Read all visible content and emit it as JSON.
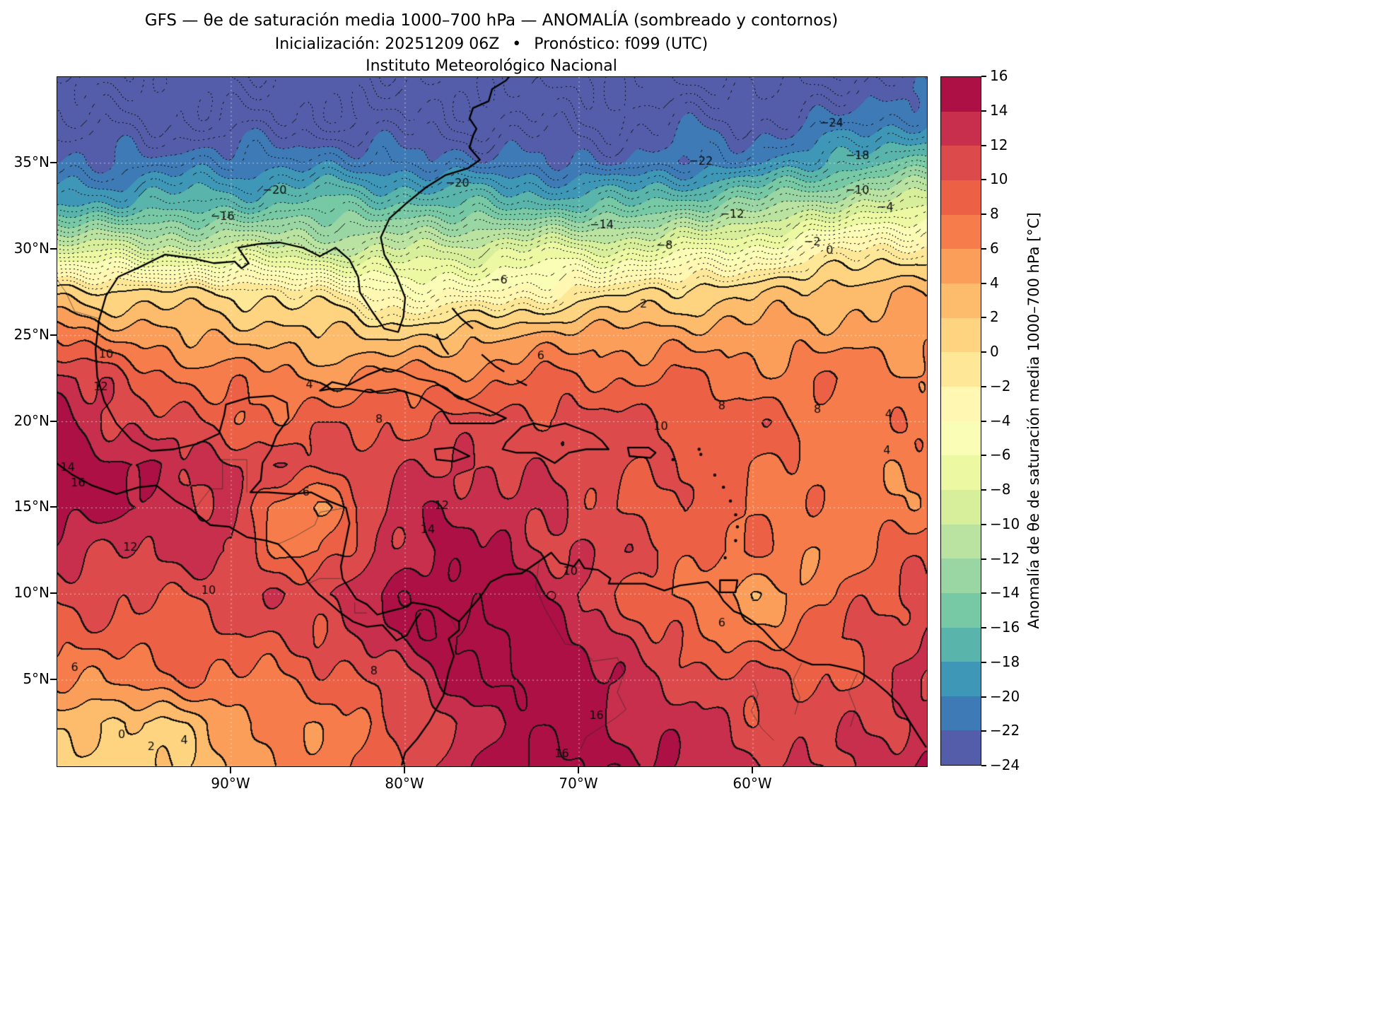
{
  "header": {
    "title": "GFS — θe de saturación media 1000–700 hPa — ANOMALÍA (sombreado y contornos)",
    "subtitle": "Inicialización: 20251209 06Z  •  Pronóstico: f099 (UTC)",
    "institution": "Instituto Meteorológico Nacional"
  },
  "axes": {
    "x_ticks": [
      {
        "label": "90°W",
        "lon": -90
      },
      {
        "label": "80°W",
        "lon": -80
      },
      {
        "label": "70°W",
        "lon": -70
      },
      {
        "label": "60°W",
        "lon": -60
      }
    ],
    "y_ticks": [
      {
        "label": "35°N",
        "lat": 35
      },
      {
        "label": "30°N",
        "lat": 30
      },
      {
        "label": "25°N",
        "lat": 25
      },
      {
        "label": "20°N",
        "lat": 20
      },
      {
        "label": "15°N",
        "lat": 15
      },
      {
        "label": "10°N",
        "lat": 10
      },
      {
        "label": "5°N",
        "lat": 5
      }
    ]
  },
  "colorbar": {
    "label": "Anomalía de θe de saturación media 1000–700 hPa [°C]",
    "ticks": [
      "16",
      "14",
      "12",
      "10",
      "8",
      "6",
      "4",
      "2",
      "0",
      "−2",
      "−4",
      "−6",
      "−8",
      "−10",
      "−12",
      "−14",
      "−16",
      "−18",
      "−20",
      "−22",
      "−24"
    ]
  },
  "chart_data": {
    "type": "heatmap",
    "title": "GFS — θe de saturación media 1000–700 hPa — ANOMALÍA (sombreado y contornos)",
    "units": "°C",
    "value_min": -24,
    "value_max": 16,
    "shade_step": 2,
    "contour_style": {
      "negative": "dotted",
      "negative_step": 1,
      "positive": "solid",
      "positive_step": 2,
      "grid": "white-dashed"
    },
    "colormap_name": "Spectral_r",
    "colormap_anchors": [
      "#5e4fa2",
      "#3288bd",
      "#66c2a5",
      "#abdda4",
      "#e6f598",
      "#ffffbf",
      "#fee08b",
      "#fdae61",
      "#f46d43",
      "#d53e4f",
      "#9e0142"
    ],
    "lon_range": [
      -100,
      -50
    ],
    "lat_range": [
      0,
      40
    ],
    "lons": [
      -100,
      -97.5,
      -95,
      -92.5,
      -90,
      -87.5,
      -85,
      -82.5,
      -80,
      -77.5,
      -75,
      -72.5,
      -70,
      -67.5,
      -65,
      -62.5,
      -60,
      -57.5,
      -55,
      -52.5,
      -50
    ],
    "lats": [
      40,
      37.5,
      35,
      32.5,
      30,
      27.5,
      25,
      22.5,
      20,
      17.5,
      15,
      12.5,
      10,
      7.5,
      5,
      2.5,
      0
    ],
    "anomaly_grid": [
      [
        -25,
        -25,
        -25,
        -25,
        -25,
        -25,
        -25,
        -25,
        -25,
        -25,
        -25,
        -25,
        -25,
        -25,
        -25,
        -25,
        -25,
        -24.5,
        -24,
        -23.5,
        -23
      ],
      [
        -24,
        -24,
        -24,
        -24,
        -24,
        -24,
        -24,
        -24,
        -24,
        -24,
        -24,
        -24,
        -24,
        -23.5,
        -23,
        -23,
        -23,
        -22.5,
        -22,
        -21,
        -20
      ],
      [
        -22,
        -22,
        -21.5,
        -21,
        -21,
        -20.5,
        -20.5,
        -21,
        -21,
        -21.5,
        -21.5,
        -21.5,
        -22,
        -22,
        -21.5,
        -21,
        -20.5,
        -19,
        -17.5,
        -16,
        -15
      ],
      [
        -18,
        -17.5,
        -17,
        -17,
        -16.5,
        -16,
        -15.5,
        -15.5,
        -15.5,
        -16,
        -16,
        -16.5,
        -16.5,
        -16,
        -15,
        -14,
        -13,
        -11.5,
        -10,
        -9,
        -8.5
      ],
      [
        -8.5,
        -9,
        -9.5,
        -9.5,
        -9.5,
        -9.5,
        -10,
        -10.5,
        -10,
        -9,
        -8.5,
        -8,
        -8,
        -8,
        -7.5,
        -6.5,
        -5.5,
        -4,
        -2.5,
        -1.5,
        -1
      ],
      [
        1,
        0.5,
        0.5,
        0.3,
        0,
        -0.5,
        -1.5,
        -3,
        -4,
        -4.5,
        -4,
        -3,
        -1.5,
        -0.5,
        0.5,
        1,
        1.5,
        2.5,
        3,
        3.5,
        4
      ],
      [
        8,
        6,
        5,
        4,
        3.5,
        3,
        2.5,
        2,
        1.5,
        2.5,
        3.5,
        4.5,
        5,
        5,
        5,
        5,
        5,
        5,
        5,
        5,
        5
      ],
      [
        13,
        11,
        9,
        8,
        7,
        6.5,
        6,
        6.5,
        7,
        7,
        7.5,
        8,
        8,
        8,
        8,
        7.5,
        7,
        7,
        7.5,
        7,
        7
      ],
      [
        15,
        13,
        11,
        10,
        9,
        8.5,
        9,
        9.5,
        10,
        10,
        10.5,
        11,
        11,
        10.5,
        10,
        9.5,
        9,
        8,
        7.5,
        7,
        7
      ],
      [
        15,
        14.5,
        14,
        13,
        12,
        11.5,
        11,
        11,
        11.5,
        12,
        12,
        11.5,
        11,
        10.5,
        10,
        9,
        8,
        7.5,
        7,
        6.5,
        7
      ],
      [
        15,
        14.5,
        14,
        13,
        12,
        7,
        6,
        10,
        13,
        14,
        13,
        12,
        11,
        10,
        9,
        8.5,
        8,
        7.5,
        7,
        7,
        7
      ],
      [
        13,
        12.5,
        12,
        12.5,
        13,
        8,
        7,
        11,
        13.5,
        14.5,
        14,
        13,
        12,
        11,
        10,
        9,
        7.5,
        6.5,
        7,
        8,
        9
      ],
      [
        11,
        10.5,
        10,
        10.5,
        11,
        11.5,
        12,
        13.5,
        15,
        16,
        16,
        14,
        12,
        10,
        8,
        6,
        5,
        6,
        8,
        10,
        11
      ],
      [
        9,
        9,
        9,
        9,
        9.5,
        10,
        10.5,
        12,
        14.5,
        16.5,
        16.5,
        15,
        14,
        12,
        10,
        8,
        7,
        8,
        10,
        11,
        12
      ],
      [
        6,
        6.5,
        7,
        7.5,
        8,
        8,
        8.5,
        9.5,
        12,
        14,
        16,
        16,
        15,
        13,
        12,
        11,
        10,
        10,
        10,
        11,
        12
      ],
      [
        3,
        1.5,
        1.5,
        3,
        5,
        6,
        7,
        8,
        10,
        12,
        14,
        15,
        15,
        14,
        13,
        12,
        11,
        11,
        11,
        12,
        13
      ],
      [
        2,
        1,
        1,
        2,
        4,
        6,
        7,
        8,
        10,
        13,
        15,
        16.5,
        16.5,
        15,
        14,
        13,
        12,
        12,
        12,
        13,
        14
      ]
    ],
    "contour_labels": [
      {
        "text": "−24",
        "lon": -55.5,
        "lat": 37.3
      },
      {
        "text": "−22",
        "lon": -63,
        "lat": 35.1
      },
      {
        "text": "−20",
        "lon": -77,
        "lat": 33.8
      },
      {
        "text": "−20",
        "lon": -87.5,
        "lat": 33.4
      },
      {
        "text": "−18",
        "lon": -54,
        "lat": 35.4
      },
      {
        "text": "−16",
        "lon": -90.5,
        "lat": 31.9
      },
      {
        "text": "−14",
        "lon": -68.7,
        "lat": 31.4
      },
      {
        "text": "−12",
        "lon": -61.2,
        "lat": 32
      },
      {
        "text": "−10",
        "lon": -54,
        "lat": 33.4
      },
      {
        "text": "−8",
        "lon": -65.1,
        "lat": 30.2
      },
      {
        "text": "−6",
        "lon": -74.6,
        "lat": 28.2
      },
      {
        "text": "−4",
        "lon": -52.4,
        "lat": 32.4
      },
      {
        "text": "−2",
        "lon": -56.6,
        "lat": 30.4
      },
      {
        "text": "0",
        "lon": -55.6,
        "lat": 29.9
      },
      {
        "text": "2",
        "lon": -66.3,
        "lat": 26.8
      },
      {
        "text": "2",
        "lon": -94.6,
        "lat": 1.1
      },
      {
        "text": "4",
        "lon": -85.5,
        "lat": 22.1
      },
      {
        "text": "4",
        "lon": -52.2,
        "lat": 20.4
      },
      {
        "text": "4",
        "lon": -52.3,
        "lat": 18.3
      },
      {
        "text": "4",
        "lon": -92.7,
        "lat": 1.5
      },
      {
        "text": "6",
        "lon": -72.2,
        "lat": 23.8
      },
      {
        "text": "6",
        "lon": -85.7,
        "lat": 15.9
      },
      {
        "text": "6",
        "lon": -99,
        "lat": 5.7
      },
      {
        "text": "6",
        "lon": -61.8,
        "lat": 8.3
      },
      {
        "text": "8",
        "lon": -81.5,
        "lat": 20.1
      },
      {
        "text": "8",
        "lon": -61.8,
        "lat": 20.9
      },
      {
        "text": "8",
        "lon": -56.3,
        "lat": 20.7
      },
      {
        "text": "8",
        "lon": -81.8,
        "lat": 5.5
      },
      {
        "text": "10",
        "lon": -65.3,
        "lat": 19.7
      },
      {
        "text": "10",
        "lon": -70.5,
        "lat": 11.3
      },
      {
        "text": "10",
        "lon": -91.3,
        "lat": 10.2
      },
      {
        "text": "10",
        "lon": -97.2,
        "lat": 23.9
      },
      {
        "text": "12",
        "lon": -77.9,
        "lat": 15.1
      },
      {
        "text": "12",
        "lon": -95.8,
        "lat": 12.7
      },
      {
        "text": "12",
        "lon": -97.5,
        "lat": 22
      },
      {
        "text": "14",
        "lon": -78.7,
        "lat": 13.7
      },
      {
        "text": "14",
        "lon": -99.4,
        "lat": 17.3
      },
      {
        "text": "16",
        "lon": -98.8,
        "lat": 16.4
      },
      {
        "text": "16",
        "lon": -69,
        "lat": 2.9
      },
      {
        "text": "16",
        "lon": -71,
        "lat": 0.7
      },
      {
        "text": "0",
        "lon": -96.3,
        "lat": 1.8
      }
    ]
  }
}
